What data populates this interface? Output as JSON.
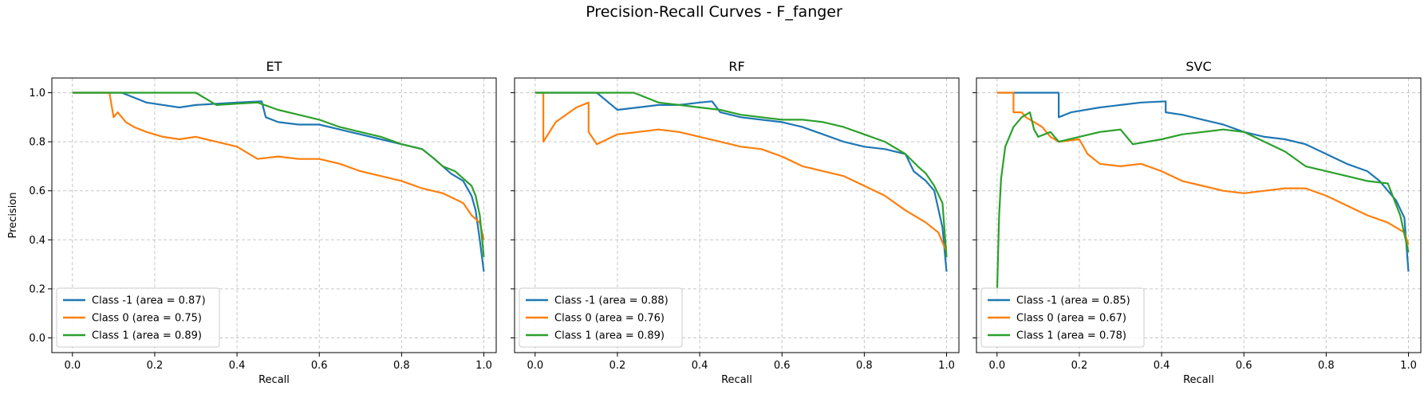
{
  "figure": {
    "title": "Precision-Recall Curves - F_fanger"
  },
  "colors": {
    "class_m1": "#1f77b4",
    "class_0": "#ff7f0e",
    "class_1": "#2ca02c"
  },
  "chart_data": [
    {
      "type": "line",
      "title": "ET",
      "xlabel": "Recall",
      "ylabel": "Precision",
      "xlim": [
        -0.05,
        1.03
      ],
      "ylim": [
        -0.06,
        1.06
      ],
      "xticks": [
        "0.0",
        "0.2",
        "0.4",
        "0.6",
        "0.8",
        "1.0"
      ],
      "yticks": [
        "0.0",
        "0.2",
        "0.4",
        "0.6",
        "0.8",
        "1.0"
      ],
      "grid": true,
      "legend": "lower-left",
      "series": [
        {
          "name": "Class -1 (area = 0.87)",
          "color": "#1f77b4",
          "x": [
            0,
            0.12,
            0.18,
            0.26,
            0.3,
            0.4,
            0.46,
            0.47,
            0.5,
            0.55,
            0.6,
            0.65,
            0.7,
            0.75,
            0.8,
            0.85,
            0.88,
            0.9,
            0.92,
            0.95,
            0.97,
            0.98,
            0.99,
            1.0
          ],
          "y": [
            1.0,
            1.0,
            0.96,
            0.94,
            0.95,
            0.96,
            0.965,
            0.9,
            0.88,
            0.87,
            0.87,
            0.85,
            0.83,
            0.81,
            0.79,
            0.77,
            0.73,
            0.7,
            0.67,
            0.64,
            0.58,
            0.52,
            0.4,
            0.27
          ]
        },
        {
          "name": "Class 0 (area = 0.75)",
          "color": "#ff7f0e",
          "x": [
            0,
            0.09,
            0.095,
            0.1,
            0.11,
            0.13,
            0.15,
            0.18,
            0.22,
            0.26,
            0.3,
            0.35,
            0.4,
            0.45,
            0.5,
            0.55,
            0.6,
            0.65,
            0.7,
            0.75,
            0.8,
            0.85,
            0.9,
            0.95,
            0.97,
            0.99,
            1.0
          ],
          "y": [
            1.0,
            1.0,
            0.95,
            0.9,
            0.92,
            0.88,
            0.86,
            0.84,
            0.82,
            0.81,
            0.82,
            0.8,
            0.78,
            0.73,
            0.74,
            0.73,
            0.73,
            0.71,
            0.68,
            0.66,
            0.64,
            0.61,
            0.59,
            0.55,
            0.5,
            0.47,
            0.4
          ]
        },
        {
          "name": "Class 1 (area = 0.89)",
          "color": "#2ca02c",
          "x": [
            0,
            0.3,
            0.35,
            0.4,
            0.45,
            0.5,
            0.55,
            0.6,
            0.65,
            0.7,
            0.75,
            0.8,
            0.85,
            0.88,
            0.9,
            0.93,
            0.95,
            0.97,
            0.98,
            0.99,
            1.0
          ],
          "y": [
            1.0,
            1.0,
            0.95,
            0.955,
            0.96,
            0.93,
            0.91,
            0.89,
            0.86,
            0.84,
            0.82,
            0.79,
            0.77,
            0.73,
            0.7,
            0.68,
            0.65,
            0.62,
            0.58,
            0.5,
            0.33
          ]
        }
      ]
    },
    {
      "type": "line",
      "title": "RF",
      "xlabel": "Recall",
      "ylabel": "",
      "xlim": [
        -0.05,
        1.03
      ],
      "ylim": [
        -0.06,
        1.06
      ],
      "xticks": [
        "0.0",
        "0.2",
        "0.4",
        "0.6",
        "0.8",
        "1.0"
      ],
      "yticks": [
        "0.0",
        "0.2",
        "0.4",
        "0.6",
        "0.8",
        "1.0"
      ],
      "grid": true,
      "legend": "lower-left",
      "series": [
        {
          "name": "Class -1 (area = 0.88)",
          "color": "#1f77b4",
          "x": [
            0,
            0.15,
            0.2,
            0.25,
            0.3,
            0.35,
            0.4,
            0.43,
            0.45,
            0.5,
            0.55,
            0.6,
            0.65,
            0.7,
            0.75,
            0.8,
            0.85,
            0.9,
            0.92,
            0.95,
            0.97,
            0.99,
            1.0
          ],
          "y": [
            1.0,
            1.0,
            0.93,
            0.94,
            0.95,
            0.95,
            0.96,
            0.965,
            0.92,
            0.9,
            0.89,
            0.88,
            0.86,
            0.83,
            0.8,
            0.78,
            0.77,
            0.75,
            0.68,
            0.64,
            0.6,
            0.45,
            0.27
          ]
        },
        {
          "name": "Class 0 (area = 0.76)",
          "color": "#ff7f0e",
          "x": [
            0,
            0.02,
            0.02,
            0.05,
            0.1,
            0.13,
            0.13,
            0.15,
            0.2,
            0.25,
            0.3,
            0.35,
            0.4,
            0.45,
            0.5,
            0.55,
            0.6,
            0.65,
            0.7,
            0.75,
            0.8,
            0.85,
            0.9,
            0.95,
            0.98,
            1.0
          ],
          "y": [
            1.0,
            1.0,
            0.8,
            0.88,
            0.94,
            0.96,
            0.84,
            0.79,
            0.83,
            0.84,
            0.85,
            0.84,
            0.82,
            0.8,
            0.78,
            0.77,
            0.74,
            0.7,
            0.68,
            0.66,
            0.62,
            0.58,
            0.52,
            0.47,
            0.43,
            0.35
          ]
        },
        {
          "name": "Class 1 (area = 0.89)",
          "color": "#2ca02c",
          "x": [
            0,
            0.24,
            0.3,
            0.35,
            0.4,
            0.45,
            0.5,
            0.55,
            0.6,
            0.65,
            0.7,
            0.75,
            0.8,
            0.85,
            0.9,
            0.93,
            0.95,
            0.97,
            0.99,
            1.0
          ],
          "y": [
            1.0,
            1.0,
            0.96,
            0.95,
            0.94,
            0.93,
            0.91,
            0.9,
            0.89,
            0.89,
            0.88,
            0.86,
            0.83,
            0.8,
            0.75,
            0.7,
            0.67,
            0.62,
            0.55,
            0.33
          ]
        }
      ]
    },
    {
      "type": "line",
      "title": "SVC",
      "xlabel": "Recall",
      "ylabel": "",
      "xlim": [
        -0.05,
        1.03
      ],
      "ylim": [
        -0.06,
        1.06
      ],
      "xticks": [
        "0.0",
        "0.2",
        "0.4",
        "0.6",
        "0.8",
        "1.0"
      ],
      "yticks": [
        "0.0",
        "0.2",
        "0.4",
        "0.6",
        "0.8",
        "1.0"
      ],
      "grid": true,
      "legend": "lower-left",
      "series": [
        {
          "name": "Class -1 (area = 0.85)",
          "color": "#1f77b4",
          "x": [
            0,
            0.15,
            0.15,
            0.18,
            0.25,
            0.3,
            0.35,
            0.41,
            0.41,
            0.45,
            0.5,
            0.55,
            0.6,
            0.65,
            0.7,
            0.75,
            0.8,
            0.85,
            0.9,
            0.93,
            0.95,
            0.97,
            0.99,
            1.0
          ],
          "y": [
            1.0,
            1.0,
            0.9,
            0.92,
            0.94,
            0.95,
            0.96,
            0.965,
            0.92,
            0.91,
            0.89,
            0.87,
            0.84,
            0.82,
            0.81,
            0.79,
            0.75,
            0.71,
            0.68,
            0.64,
            0.6,
            0.56,
            0.49,
            0.27
          ]
        },
        {
          "name": "Class 0 (area = 0.67)",
          "color": "#ff7f0e",
          "x": [
            0,
            0.04,
            0.04,
            0.06,
            0.07,
            0.09,
            0.11,
            0.13,
            0.15,
            0.2,
            0.22,
            0.25,
            0.3,
            0.35,
            0.4,
            0.45,
            0.5,
            0.55,
            0.6,
            0.65,
            0.7,
            0.75,
            0.8,
            0.85,
            0.9,
            0.95,
            0.99,
            1.0
          ],
          "y": [
            1.0,
            1.0,
            0.92,
            0.92,
            0.9,
            0.88,
            0.86,
            0.82,
            0.8,
            0.81,
            0.75,
            0.71,
            0.7,
            0.71,
            0.68,
            0.64,
            0.62,
            0.6,
            0.59,
            0.6,
            0.61,
            0.61,
            0.58,
            0.54,
            0.5,
            0.47,
            0.43,
            0.38
          ]
        },
        {
          "name": "Class 1 (area = 0.78)",
          "color": "#2ca02c",
          "x": [
            0,
            0.005,
            0.01,
            0.02,
            0.04,
            0.06,
            0.08,
            0.09,
            0.1,
            0.13,
            0.15,
            0.2,
            0.25,
            0.3,
            0.33,
            0.4,
            0.45,
            0.5,
            0.55,
            0.6,
            0.65,
            0.7,
            0.75,
            0.8,
            0.85,
            0.9,
            0.95,
            0.98,
            1.0
          ],
          "y": [
            0.18,
            0.5,
            0.65,
            0.78,
            0.86,
            0.9,
            0.92,
            0.85,
            0.82,
            0.84,
            0.8,
            0.82,
            0.84,
            0.85,
            0.79,
            0.81,
            0.83,
            0.84,
            0.85,
            0.84,
            0.8,
            0.76,
            0.7,
            0.68,
            0.66,
            0.64,
            0.63,
            0.5,
            0.35
          ]
        }
      ]
    }
  ]
}
